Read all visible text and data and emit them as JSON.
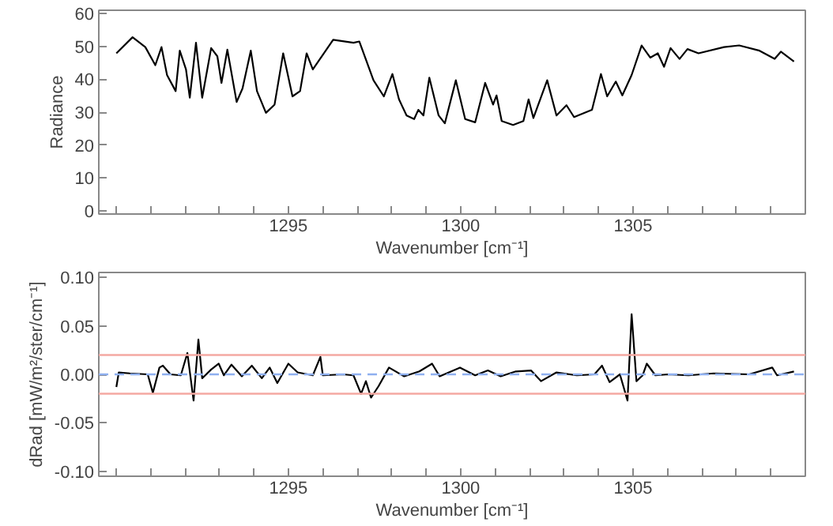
{
  "chart_data": [
    {
      "type": "line",
      "xlabel": "Wavenumber [cm⁻¹]",
      "ylabel": "Radiance",
      "xlim": [
        1289.5,
        1310
      ],
      "ylim": [
        -1,
        61
      ],
      "xticks": [
        {
          "value": 1290,
          "label": null
        },
        {
          "value": 1291,
          "label": null
        },
        {
          "value": 1292,
          "label": null
        },
        {
          "value": 1293,
          "label": null
        },
        {
          "value": 1294,
          "label": null
        },
        1295,
        {
          "value": 1296,
          "label": null
        },
        {
          "value": 1297,
          "label": null
        },
        {
          "value": 1298,
          "label": null
        },
        {
          "value": 1299,
          "label": null
        },
        1300,
        {
          "value": 1301,
          "label": null
        },
        {
          "value": 1302,
          "label": null
        },
        {
          "value": 1303,
          "label": null
        },
        {
          "value": 1304,
          "label": null
        },
        1305,
        {
          "value": 1306,
          "label": null
        },
        {
          "value": 1307,
          "label": null
        },
        {
          "value": 1308,
          "label": null
        },
        {
          "value": 1309,
          "label": null
        }
      ],
      "yticks": [
        0,
        10,
        20,
        30,
        40,
        50,
        60
      ],
      "grid": false,
      "line_style": "solid",
      "series": [
        {
          "color": "#000000",
          "x": [
            1290.01,
            1290.48,
            1290.85,
            1291.14,
            1291.32,
            1291.48,
            1291.73,
            1291.85,
            1292.03,
            1292.14,
            1292.32,
            1292.5,
            1292.76,
            1292.94,
            1293.06,
            1293.23,
            1293.5,
            1293.67,
            1293.91,
            1294.09,
            1294.35,
            1294.6,
            1294.85,
            1295.12,
            1295.34,
            1295.53,
            1295.71,
            1296.3,
            1296.89,
            1297.06,
            1297.47,
            1297.77,
            1298.02,
            1298.21,
            1298.43,
            1298.65,
            1298.77,
            1298.92,
            1299.09,
            1299.36,
            1299.54,
            1299.86,
            1300.13,
            1300.42,
            1300.71,
            1300.94,
            1301.04,
            1301.19,
            1301.52,
            1301.82,
            1301.97,
            1302.11,
            1302.51,
            1302.78,
            1303.07,
            1303.29,
            1303.81,
            1304.07,
            1304.25,
            1304.5,
            1304.69,
            1304.96,
            1305.25,
            1305.5,
            1305.72,
            1305.9,
            1306.09,
            1306.35,
            1306.58,
            1306.9,
            1307.64,
            1308.08,
            1308.67,
            1309.11,
            1309.29,
            1309.67
          ],
          "values": [
            47.9,
            52.8,
            49.8,
            44.3,
            49.8,
            41.3,
            36.4,
            48.7,
            43,
            34.4,
            51.1,
            34.4,
            49.5,
            47,
            38.9,
            49,
            33.1,
            37.2,
            48.7,
            36.4,
            29.8,
            32.3,
            47.9,
            34.8,
            36.4,
            47.9,
            43,
            52,
            51.1,
            51.5,
            39.7,
            34.8,
            41.6,
            33.9,
            29,
            27.9,
            30.7,
            29,
            40.5,
            29,
            26.6,
            39.7,
            27.9,
            26.9,
            38.9,
            32.3,
            35.1,
            27.3,
            26.1,
            27.3,
            33.9,
            28.2,
            39.7,
            29,
            32.1,
            28.5,
            30.7,
            41.6,
            34.8,
            39.3,
            35.1,
            41.3,
            50.3,
            46.6,
            47.9,
            43.8,
            49.5,
            46.2,
            49.2,
            47.9,
            49.8,
            50.3,
            48.7,
            46.2,
            48.4,
            45.4
          ]
        }
      ]
    },
    {
      "type": "line",
      "xlabel": "Wavenumber [cm⁻¹]",
      "ylabel": "dRad [mW/m²/ster/cm⁻¹]",
      "xlim": [
        1289.5,
        1310
      ],
      "ylim": [
        -0.105,
        0.105
      ],
      "xticks": [
        {
          "value": 1290,
          "label": null
        },
        {
          "value": 1291,
          "label": null
        },
        {
          "value": 1292,
          "label": null
        },
        {
          "value": 1293,
          "label": null
        },
        {
          "value": 1294,
          "label": null
        },
        1295,
        {
          "value": 1296,
          "label": null
        },
        {
          "value": 1297,
          "label": null
        },
        {
          "value": 1298,
          "label": null
        },
        {
          "value": 1299,
          "label": null
        },
        1300,
        {
          "value": 1301,
          "label": null
        },
        {
          "value": 1302,
          "label": null
        },
        {
          "value": 1303,
          "label": null
        },
        {
          "value": 1304,
          "label": null
        },
        1305,
        {
          "value": 1306,
          "label": null
        },
        {
          "value": 1307,
          "label": null
        },
        {
          "value": 1308,
          "label": null
        },
        {
          "value": 1309,
          "label": null
        }
      ],
      "yticks": [
        {
          "value": -0.1,
          "label": "-0.10"
        },
        {
          "value": -0.05,
          "label": "-0.05"
        },
        {
          "value": 0,
          "label": "0.00"
        },
        {
          "value": 0.05,
          "label": "0.05"
        },
        {
          "value": 0.1,
          "label": "0.10"
        }
      ],
      "grid": false,
      "line_style": "solid",
      "ref_lines": [
        {
          "axis": "y",
          "value": 0,
          "color": "#8fb0f0",
          "line_style": "dashed"
        },
        {
          "axis": "y",
          "value": 0.02,
          "color": "#f4a9a2",
          "line_style": "solid"
        },
        {
          "axis": "y",
          "value": -0.02,
          "color": "#f4a9a2",
          "line_style": "solid"
        }
      ],
      "series": [
        {
          "color": "#000000",
          "x": [
            1290.01,
            1290.08,
            1290.4,
            1290.92,
            1291.07,
            1291.26,
            1291.36,
            1291.58,
            1291.88,
            1292.07,
            1292.25,
            1292.39,
            1292.5,
            1292.76,
            1292.98,
            1293.13,
            1293.35,
            1293.65,
            1293.94,
            1294.23,
            1294.46,
            1294.68,
            1295.0,
            1295.27,
            1295.71,
            1295.93,
            1296.0,
            1296.59,
            1296.89,
            1297.11,
            1297.25,
            1297.4,
            1297.62,
            1297.92,
            1298.36,
            1298.8,
            1299.17,
            1299.39,
            1299.98,
            1300.42,
            1300.79,
            1301.16,
            1301.6,
            1302.04,
            1302.33,
            1302.78,
            1303.37,
            1303.88,
            1304.1,
            1304.32,
            1304.62,
            1304.84,
            1304.96,
            1305.1,
            1305.28,
            1305.4,
            1305.65,
            1306.02,
            1306.61,
            1307.34,
            1308.37,
            1309.04,
            1309.18,
            1309.67
          ],
          "values": [
            -0.013,
            0.002,
            0.001,
            0,
            -0.019,
            0.007,
            0.009,
            0,
            -0.001,
            0.022,
            -0.027,
            0.036,
            -0.004,
            0.005,
            0.011,
            -0.001,
            0.01,
            -0.002,
            0.009,
            -0.004,
            0.007,
            -0.009,
            0.011,
            0.002,
            -0.001,
            0.018,
            -0.001,
            0,
            -0.001,
            -0.02,
            -0.007,
            -0.024,
            -0.012,
            0.007,
            -0.002,
            0.003,
            0.011,
            -0.002,
            0.007,
            -0.001,
            0.004,
            -0.002,
            0.003,
            0.004,
            -0.007,
            0.002,
            -0.001,
            0,
            0.009,
            -0.008,
            0,
            -0.027,
            0.062,
            -0.007,
            -0.001,
            0.011,
            -0.001,
            0,
            -0.001,
            0.001,
            0,
            0.007,
            -0.001,
            0.003
          ]
        }
      ]
    }
  ]
}
